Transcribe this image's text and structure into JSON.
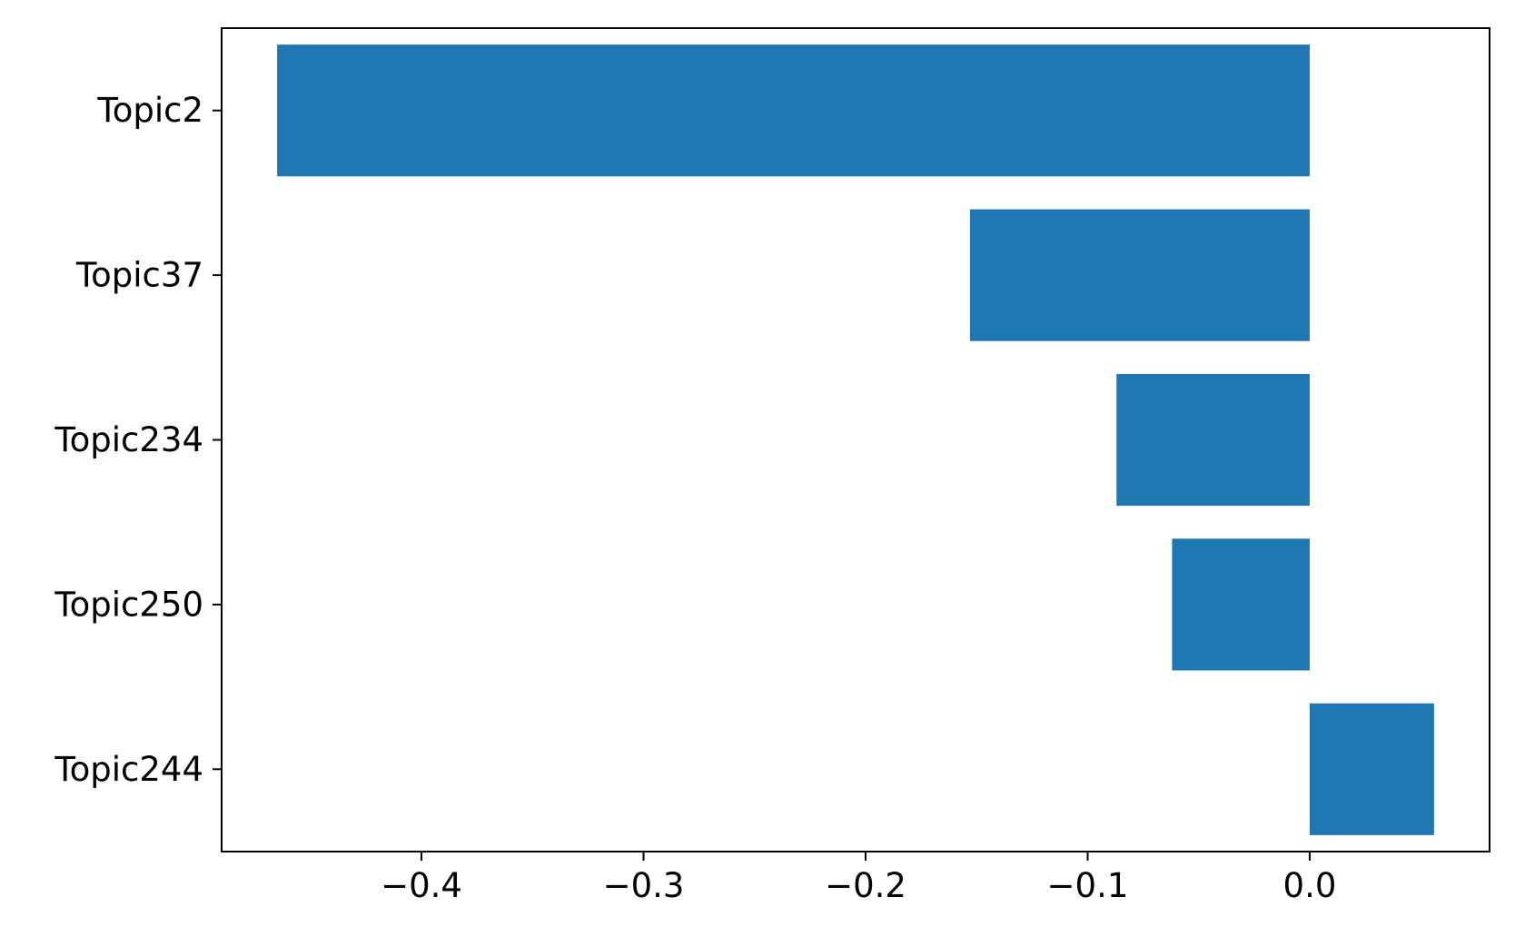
{
  "chart_data": {
    "type": "bar",
    "orientation": "horizontal",
    "title": "",
    "xlabel": "",
    "ylabel": "",
    "categories": [
      "Topic2",
      "Topic37",
      "Topic234",
      "Topic250",
      "Topic244"
    ],
    "values": [
      -0.465,
      -0.153,
      -0.087,
      -0.062,
      0.056
    ],
    "xlim": [
      -0.49,
      0.081
    ],
    "xticks": [
      -0.4,
      -0.3,
      -0.2,
      -0.1,
      0.0
    ],
    "xtick_labels": [
      "−0.4",
      "−0.3",
      "−0.2",
      "−0.1",
      "0.0"
    ],
    "grid": false,
    "legend": "none",
    "bar_color": "#1f77b4"
  }
}
